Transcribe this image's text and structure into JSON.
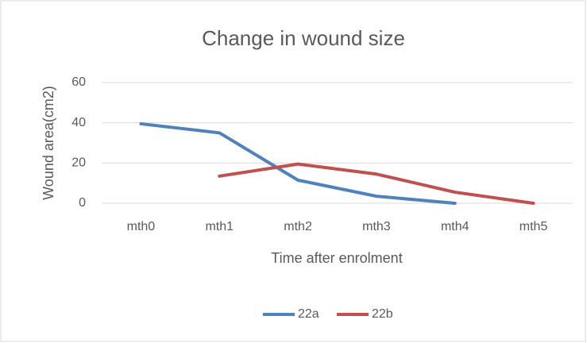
{
  "chart_data": {
    "type": "line",
    "title": "Change in wound size",
    "x_label": "Time after enrolment",
    "y_label": "Wound area(cm2)",
    "categories": [
      "mth0",
      "mth1",
      "mth2",
      "mth3",
      "mth4",
      "mth5"
    ],
    "series": [
      {
        "name": "22a",
        "color": "#4f81bd",
        "values": [
          39.5,
          35,
          11.5,
          3.5,
          0,
          null
        ]
      },
      {
        "name": "22b",
        "color": "#c0504d",
        "values": [
          null,
          13.5,
          19.5,
          14.5,
          5.5,
          0
        ]
      }
    ],
    "ylim": [
      0,
      60
    ],
    "yticks": [
      0,
      20,
      40,
      60
    ],
    "grid": true,
    "legend": "bottom"
  }
}
